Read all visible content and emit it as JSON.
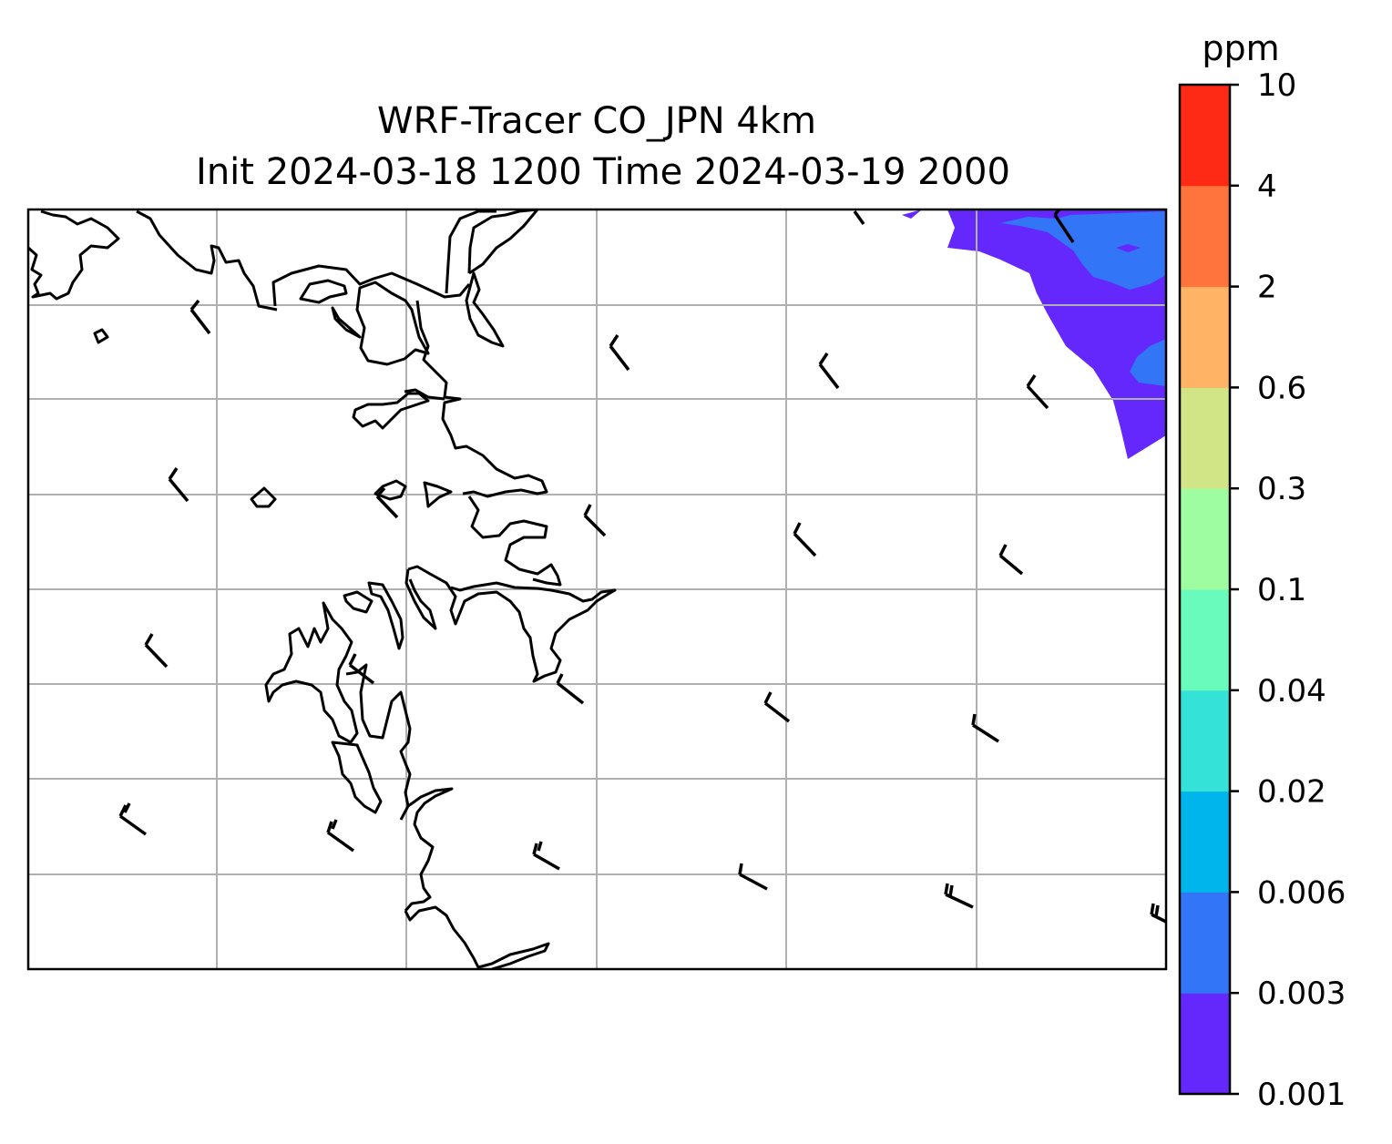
{
  "title": {
    "line1": "WRF-Tracer CO_JPN 4km",
    "line2": "Init 2024-03-18 1200 Time 2024-03-19 2000"
  },
  "colorbar": {
    "unit": "ppm",
    "levels": [
      "0.001",
      "0.003",
      "0.006",
      "0.02",
      "0.04",
      "0.1",
      "0.3",
      "0.6",
      "2",
      "4",
      "10"
    ],
    "colors": [
      "#6428fc",
      "#3375f7",
      "#00b5ec",
      "#35e2d8",
      "#69fbbc",
      "#9dfda0",
      "#d1e486",
      "#ffb364",
      "#ff743c",
      "#ff2a15"
    ]
  },
  "map": {
    "grid": "on",
    "features": [
      "coastline",
      "wind-barbs",
      "tracer-fill"
    ]
  }
}
